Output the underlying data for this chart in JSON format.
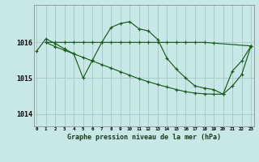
{
  "bg_color": "#c8e8e8",
  "grid_color": "#a8cccc",
  "line_color": "#1a5c1a",
  "title": "Graphe pression niveau de la mer (hPa)",
  "yticks": [
    1014,
    1015,
    1016
  ],
  "xlim": [
    -0.3,
    23.3
  ],
  "ylim": [
    1013.65,
    1017.05
  ],
  "series_main": [
    [
      0,
      1015.75
    ],
    [
      1,
      1016.1
    ],
    [
      2,
      1015.97
    ],
    [
      3,
      1015.82
    ],
    [
      4,
      1015.68
    ],
    [
      5,
      1015.0
    ],
    [
      6,
      1015.5
    ],
    [
      7,
      1016.0
    ],
    [
      8,
      1016.42
    ],
    [
      9,
      1016.53
    ],
    [
      10,
      1016.58
    ],
    [
      11,
      1016.38
    ],
    [
      12,
      1016.32
    ],
    [
      13,
      1016.08
    ],
    [
      14,
      1015.55
    ],
    [
      15,
      1015.25
    ],
    [
      16,
      1015.0
    ],
    [
      17,
      1014.78
    ],
    [
      18,
      1014.72
    ],
    [
      19,
      1014.68
    ],
    [
      20,
      1014.55
    ],
    [
      21,
      1015.2
    ],
    [
      22,
      1015.48
    ],
    [
      23,
      1015.9
    ]
  ],
  "series_flat": [
    [
      1,
      1016.0
    ],
    [
      2,
      1016.0
    ],
    [
      3,
      1016.0
    ],
    [
      4,
      1016.0
    ],
    [
      5,
      1016.0
    ],
    [
      6,
      1016.0
    ],
    [
      7,
      1016.0
    ],
    [
      8,
      1016.0
    ],
    [
      9,
      1016.0
    ],
    [
      10,
      1016.0
    ],
    [
      11,
      1016.0
    ],
    [
      12,
      1016.0
    ],
    [
      13,
      1016.0
    ],
    [
      14,
      1016.0
    ],
    [
      15,
      1016.0
    ],
    [
      16,
      1016.0
    ],
    [
      17,
      1016.0
    ],
    [
      18,
      1016.0
    ],
    [
      19,
      1015.98
    ],
    [
      23,
      1015.9
    ]
  ],
  "series_decline": [
    [
      1,
      1016.0
    ],
    [
      2,
      1015.88
    ],
    [
      3,
      1015.78
    ],
    [
      4,
      1015.68
    ],
    [
      5,
      1015.58
    ],
    [
      6,
      1015.48
    ],
    [
      7,
      1015.38
    ],
    [
      8,
      1015.28
    ],
    [
      9,
      1015.18
    ],
    [
      10,
      1015.08
    ],
    [
      11,
      1014.98
    ],
    [
      12,
      1014.9
    ],
    [
      13,
      1014.82
    ],
    [
      14,
      1014.75
    ],
    [
      15,
      1014.68
    ],
    [
      16,
      1014.62
    ],
    [
      17,
      1014.58
    ],
    [
      18,
      1014.56
    ],
    [
      19,
      1014.55
    ],
    [
      20,
      1014.55
    ],
    [
      21,
      1014.78
    ],
    [
      22,
      1015.1
    ],
    [
      23,
      1015.9
    ]
  ]
}
